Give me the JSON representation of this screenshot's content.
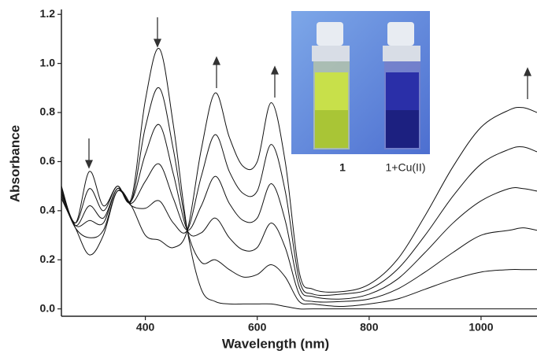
{
  "chart_data": {
    "type": "line",
    "x_label": "Wavelength (nm)",
    "y_label": "Absorbance",
    "x": [
      250,
      275,
      300,
      325,
      350,
      375,
      400,
      425,
      450,
      475,
      500,
      525,
      550,
      575,
      600,
      625,
      650,
      675,
      700,
      750,
      800,
      850,
      900,
      950,
      1000,
      1050,
      1075,
      1100
    ],
    "series": [
      {
        "color": "#111111",
        "values": [
          0.5,
          0.35,
          0.56,
          0.42,
          0.5,
          0.45,
          0.85,
          1.06,
          0.75,
          0.32,
          0.08,
          0.03,
          0.02,
          0.02,
          0.02,
          0.02,
          0.01,
          0.0,
          0.0,
          0.0,
          0.0,
          0.0,
          0.0,
          0.0,
          0.0,
          0.0,
          0.0,
          0.0
        ]
      },
      {
        "color": "#111111",
        "values": [
          0.49,
          0.35,
          0.49,
          0.4,
          0.5,
          0.44,
          0.74,
          0.9,
          0.65,
          0.32,
          0.19,
          0.2,
          0.16,
          0.13,
          0.14,
          0.18,
          0.13,
          0.03,
          0.02,
          0.01,
          0.02,
          0.04,
          0.08,
          0.12,
          0.15,
          0.16,
          0.16,
          0.16
        ]
      },
      {
        "color": "#111111",
        "values": [
          0.48,
          0.34,
          0.42,
          0.37,
          0.49,
          0.44,
          0.63,
          0.75,
          0.55,
          0.32,
          0.31,
          0.37,
          0.29,
          0.24,
          0.25,
          0.35,
          0.25,
          0.06,
          0.03,
          0.03,
          0.04,
          0.08,
          0.15,
          0.23,
          0.3,
          0.32,
          0.33,
          0.32
        ]
      },
      {
        "color": "#111111",
        "values": [
          0.47,
          0.34,
          0.36,
          0.35,
          0.49,
          0.43,
          0.52,
          0.59,
          0.45,
          0.32,
          0.42,
          0.54,
          0.43,
          0.36,
          0.37,
          0.51,
          0.36,
          0.09,
          0.05,
          0.04,
          0.06,
          0.12,
          0.23,
          0.35,
          0.44,
          0.49,
          0.49,
          0.48
        ]
      },
      {
        "color": "#111111",
        "values": [
          0.46,
          0.33,
          0.29,
          0.32,
          0.48,
          0.42,
          0.41,
          0.44,
          0.35,
          0.32,
          0.54,
          0.71,
          0.56,
          0.47,
          0.48,
          0.67,
          0.48,
          0.12,
          0.06,
          0.06,
          0.08,
          0.16,
          0.3,
          0.46,
          0.59,
          0.65,
          0.66,
          0.64
        ]
      },
      {
        "color": "#111111",
        "values": [
          0.45,
          0.33,
          0.22,
          0.3,
          0.48,
          0.42,
          0.3,
          0.28,
          0.25,
          0.32,
          0.65,
          0.88,
          0.7,
          0.58,
          0.6,
          0.84,
          0.6,
          0.15,
          0.08,
          0.07,
          0.1,
          0.2,
          0.38,
          0.58,
          0.74,
          0.81,
          0.82,
          0.8
        ]
      }
    ],
    "xlim": [
      250,
      1100
    ],
    "ylim": [
      -0.03,
      1.22
    ],
    "xticks": [
      400,
      600,
      800,
      1000
    ],
    "yticks": [
      {
        "value": 0,
        "label": "0.0"
      },
      {
        "value": 0.2,
        "label": "0.2"
      },
      {
        "value": 0.4,
        "label": "0.4"
      },
      {
        "value": 0.6,
        "label": "0.6"
      },
      {
        "value": 0.8,
        "label": "0.8"
      },
      {
        "value": 1.0,
        "label": "1.0"
      },
      {
        "value": 1.2,
        "label": "1.2"
      }
    ],
    "annotations": [
      "1",
      "1+Cu(II)"
    ]
  }
}
